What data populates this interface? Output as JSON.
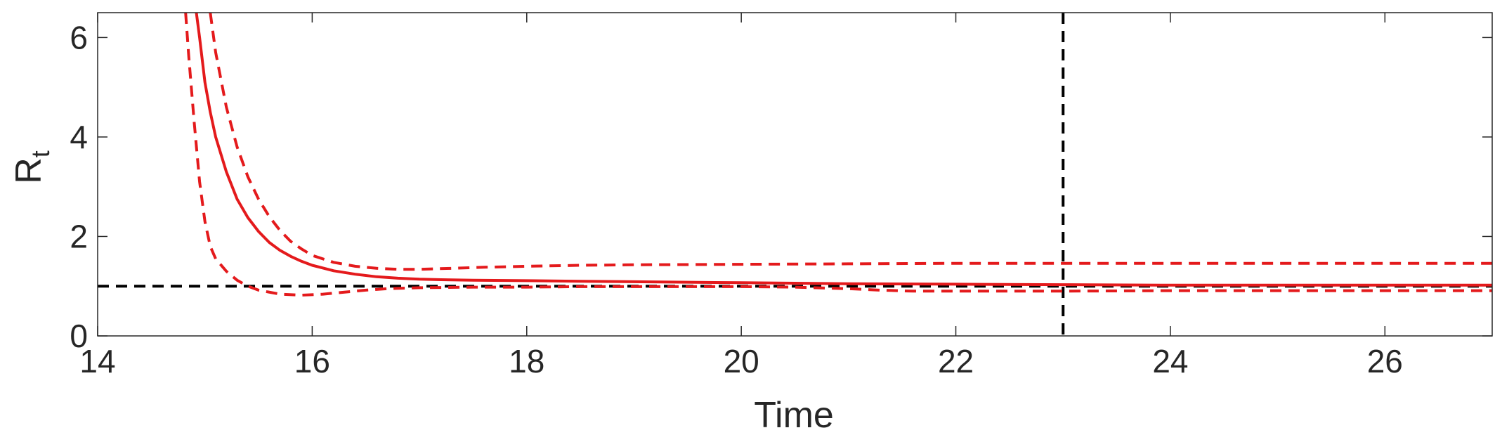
{
  "chart_data": {
    "type": "line",
    "xlabel": "Time",
    "ylabel": "R",
    "ylabel_subscript": "t",
    "xlim": [
      14,
      27
    ],
    "ylim": [
      0,
      6.5
    ],
    "xticks": [
      14,
      16,
      18,
      20,
      22,
      24,
      26
    ],
    "yticks": [
      0,
      2,
      4,
      6
    ],
    "grid": false,
    "colors": {
      "estimate": "#e41a1c",
      "reference": "#000000",
      "axis": "#262626"
    },
    "series": [
      {
        "style": "solid",
        "color": "#e41a1c",
        "x": [
          14.92,
          14.95,
          15.0,
          15.05,
          15.1,
          15.2,
          15.3,
          15.4,
          15.5,
          15.6,
          15.7,
          15.8,
          15.9,
          16.0,
          16.2,
          16.4,
          16.6,
          16.8,
          17.0,
          17.2,
          17.5,
          18.0,
          18.5,
          19.0,
          20.0,
          21.0,
          22.0,
          23.0,
          24.0,
          25.0,
          26.0,
          27.0
        ],
        "y": [
          6.5,
          6.0,
          5.1,
          4.5,
          4.0,
          3.3,
          2.75,
          2.38,
          2.1,
          1.88,
          1.72,
          1.6,
          1.5,
          1.42,
          1.31,
          1.24,
          1.19,
          1.16,
          1.14,
          1.13,
          1.12,
          1.11,
          1.1,
          1.09,
          1.07,
          1.05,
          1.04,
          1.03,
          1.02,
          1.02,
          1.02,
          1.02
        ]
      },
      {
        "style": "dashed",
        "color": "#e41a1c",
        "x": [
          15.05,
          15.1,
          15.2,
          15.3,
          15.4,
          15.5,
          15.6,
          15.7,
          15.8,
          15.9,
          16.0,
          16.2,
          16.4,
          16.6,
          16.8,
          17.0,
          17.3,
          17.6,
          18.0,
          18.5,
          19.0,
          20.0,
          21.0,
          22.0,
          23.0,
          24.0,
          25.0,
          26.0,
          27.0
        ],
        "y": [
          6.5,
          5.7,
          4.6,
          3.8,
          3.2,
          2.75,
          2.4,
          2.12,
          1.9,
          1.75,
          1.62,
          1.48,
          1.4,
          1.36,
          1.34,
          1.34,
          1.36,
          1.38,
          1.4,
          1.42,
          1.43,
          1.44,
          1.45,
          1.46,
          1.46,
          1.46,
          1.46,
          1.46,
          1.46
        ]
      },
      {
        "style": "dashed",
        "color": "#e41a1c",
        "x": [
          14.82,
          14.85,
          14.9,
          14.95,
          15.0,
          15.05,
          15.1,
          15.2,
          15.3,
          15.4,
          15.5,
          15.7,
          15.9,
          16.1,
          16.3,
          16.5,
          16.7,
          17.0,
          17.5,
          18.0,
          18.5,
          19.0,
          20.0,
          20.5,
          21.0,
          21.3,
          21.6,
          22.0,
          23.0,
          24.0,
          25.0,
          26.0,
          27.0
        ],
        "y": [
          6.5,
          5.6,
          4.3,
          3.1,
          2.3,
          1.8,
          1.55,
          1.3,
          1.12,
          1.0,
          0.92,
          0.84,
          0.82,
          0.84,
          0.88,
          0.92,
          0.95,
          0.97,
          0.98,
          0.98,
          0.99,
          0.99,
          0.99,
          0.98,
          0.95,
          0.92,
          0.9,
          0.9,
          0.9,
          0.91,
          0.91,
          0.91,
          0.91
        ]
      }
    ],
    "reference_lines": [
      {
        "orientation": "horizontal",
        "y": 1,
        "style": "dashed",
        "color": "#000000"
      },
      {
        "orientation": "vertical",
        "x": 23,
        "style": "dashed",
        "color": "#000000"
      }
    ]
  }
}
